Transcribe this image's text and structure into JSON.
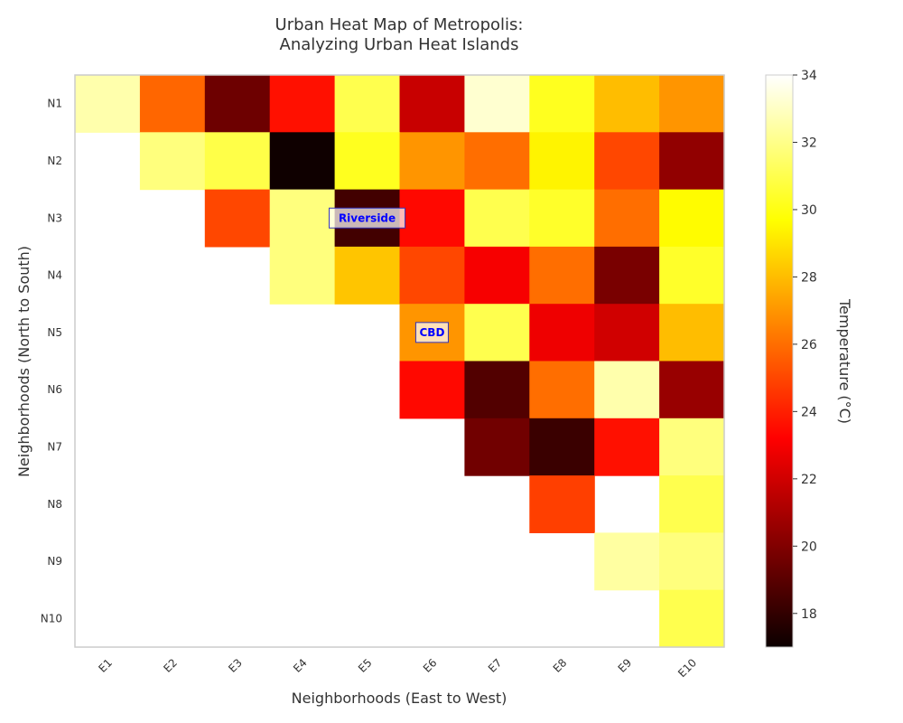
{
  "chart_data": {
    "type": "heatmap",
    "title_lines": [
      "Urban Heat Map of Metropolis:",
      "Analyzing Urban Heat Islands"
    ],
    "xlabel": "Neighborhoods (East to West)",
    "ylabel": "Neighborhoods (North to South)",
    "x_categories": [
      "E1",
      "E2",
      "E3",
      "E4",
      "E5",
      "E6",
      "E7",
      "E8",
      "E9",
      "E10"
    ],
    "y_categories": [
      "N1",
      "N2",
      "N3",
      "N4",
      "N5",
      "N6",
      "N7",
      "N8",
      "N9",
      "N10"
    ],
    "colormap": "hot",
    "vmin": 17,
    "vmax": 34,
    "values": [
      [
        32.6,
        25.8,
        19.5,
        23.6,
        31.0,
        21.8,
        33.2,
        30.2,
        28.0,
        27.0
      ],
      [
        null,
        31.8,
        30.9,
        17.1,
        30.2,
        27.0,
        26.0,
        29.4,
        25.0,
        20.4
      ],
      [
        null,
        null,
        25.0,
        31.8,
        18.4,
        23.4,
        31.0,
        30.4,
        26.0,
        29.6
      ],
      [
        null,
        null,
        null,
        31.8,
        28.2,
        25.0,
        23.0,
        26.0,
        19.8,
        30.4
      ],
      [
        null,
        null,
        null,
        null,
        null,
        27.0,
        31.0,
        22.8,
        22.0,
        28.0
      ],
      [
        null,
        null,
        null,
        null,
        null,
        23.4,
        18.8,
        26.0,
        32.6,
        20.6
      ],
      [
        null,
        null,
        null,
        null,
        null,
        null,
        19.6,
        18.2,
        23.6,
        31.8
      ],
      [
        null,
        null,
        null,
        null,
        null,
        null,
        null,
        24.8,
        null,
        31.0
      ],
      [
        null,
        null,
        null,
        null,
        null,
        null,
        null,
        null,
        32.4,
        31.8
      ],
      [
        null,
        null,
        null,
        null,
        null,
        null,
        null,
        null,
        null,
        31.0
      ]
    ],
    "annotations": [
      {
        "label": "Riverside",
        "col": "E5",
        "row": "N3"
      },
      {
        "label": "CBD",
        "col": "E6",
        "row": "N5"
      }
    ],
    "colorbar": {
      "label": "Temperature (°C)",
      "ticks": [
        18,
        20,
        22,
        24,
        26,
        28,
        30,
        32,
        34
      ]
    }
  }
}
